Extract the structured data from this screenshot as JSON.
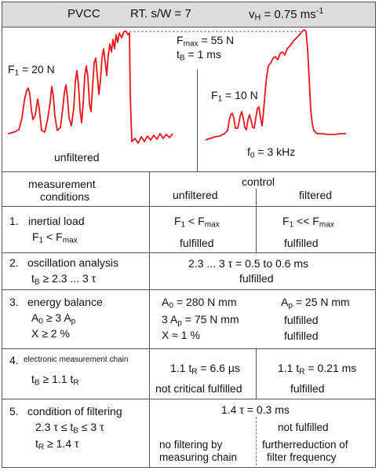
{
  "header": {
    "material": "PVCC",
    "ratio_label": "RT. s/W = 7",
    "speed_sym": "v",
    "speed_sub": "H",
    "speed_val": " = 0.75  ms",
    "speed_exp": "-1"
  },
  "signals": {
    "left_f1_sym": "F",
    "left_f1_sub": "1",
    "left_f1_val": " = 20 N",
    "left_caption": "unfiltered",
    "fmax_sym": "F",
    "fmax_sub": "max",
    "fmax_val": " = 55 N",
    "tb_sym": "t",
    "tb_sub": "B",
    "tb_val": "   = 1 ms",
    "right_f1_sym": "F",
    "right_f1_sub": "1",
    "right_f1_val": " = 10 N",
    "right_caption_sym": "f",
    "right_caption_sub": "0",
    "right_caption_val": " = 3 kHz",
    "line_color": "#e8151b"
  },
  "table": {
    "col_conditions": "measurement",
    "col_conditions_2": "conditions",
    "col_control": "control",
    "col_unfiltered": "unfiltered",
    "col_filtered": "filtered",
    "rows": [
      {
        "num": "1.",
        "title": "inertial load",
        "cond_a": "F",
        "cond_a_sub": "1",
        "cond_b": " <  F",
        "cond_b_sub": "max",
        "unf_a": "F",
        "unf_a_sub": "1",
        "unf_b": " <  F",
        "unf_b_sub": "max",
        "unf_status": "fulfilled",
        "fil_a": "F",
        "fil_a_sub": "1",
        "fil_b": " <<  F",
        "fil_b_sub": "max",
        "fil_status": "fulfilled"
      },
      {
        "num": "2.",
        "title": "oscillation analysis",
        "cond_a": "t",
        "cond_a_sub": "B",
        "cond_b": " ≥ 2.3 ... 3 τ",
        "both_line": "2.3 ... 3 τ = 0.5  to  0.6 ms",
        "both_status": "fulfilled"
      },
      {
        "num": "3.",
        "title": "energy balance",
        "cond_a": "A",
        "cond_a_sub": "0",
        "cond_b": " ≥ 3 A",
        "cond_b_sub": "p",
        "cond_c": "X   ≥ 2 %",
        "a0_sym": "A",
        "a0_sub": "0",
        "a0_val": " = 280 N mm",
        "ap_sym": "A",
        "ap_sub": "p",
        "ap_val": " = 25 N mm",
        "three_ap_sym": "3 A",
        "three_ap_sub": "p",
        "three_ap_val": " = 75 N mm",
        "x_line": "X  ≈ 1 %",
        "fil_status_1": "fulfilled",
        "fil_status_2": "fulfilled"
      },
      {
        "num": "4.",
        "title": "electronic measurement chain",
        "cond_a": "t",
        "cond_a_sub": "B",
        "cond_b": " ≥ 1.1  t",
        "cond_b_sub": "R",
        "unf_a": "1.1 t",
        "unf_a_sub": "R",
        "unf_b": " = 6.6 µs",
        "unf_status": "not critical fulfilled",
        "fil_a": "1.1 t",
        "fil_a_sub": "R",
        "fil_b": " = 0.21 ms",
        "fil_status": "fulfilled"
      },
      {
        "num": "5.",
        "title": "condition of filtering",
        "cond_a": "2.3 τ  ≤ t",
        "cond_a_sub": "B",
        "cond_b": " ≤ 3 τ",
        "cond_c": "t",
        "cond_c_sub": "R",
        "cond_d": " ≥ 1.4 τ",
        "both_line": "1.4 τ = 0.3 ms",
        "unf_line1": "no filtering by",
        "unf_line2": "measuring chain",
        "fil_line1": "not fulfilled",
        "fil_line2": "furtherreduction of",
        "fil_line3": "filter frequency"
      }
    ]
  }
}
